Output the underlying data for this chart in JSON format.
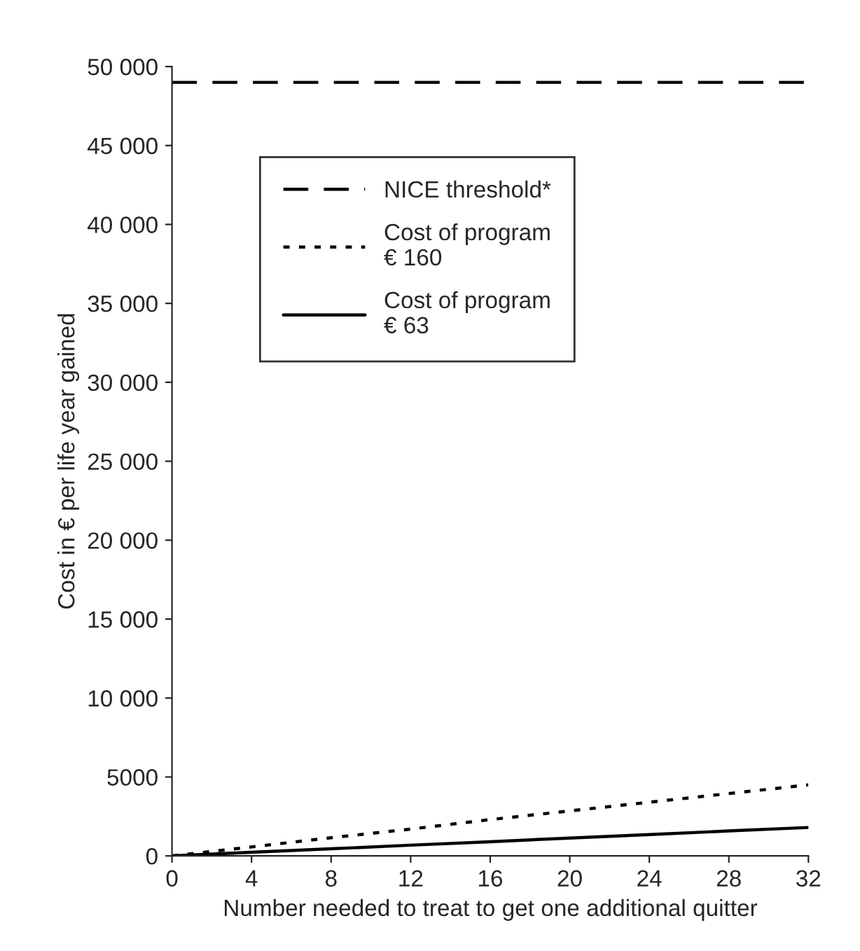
{
  "chart_data": {
    "type": "line",
    "xlabel": "Number needed to treat to get one additional quitter",
    "ylabel": "Cost in € per life year gained",
    "series": [
      {
        "name": "NICE threshold*",
        "color": "#000000",
        "line_style": "dashed",
        "x": [
          0,
          32
        ],
        "values": [
          49000,
          49000
        ]
      },
      {
        "name": "Cost of program\n€ 160",
        "color": "#000000",
        "line_style": "dotted",
        "x": [
          0,
          4,
          8,
          12,
          16,
          20,
          24,
          28,
          32
        ],
        "values": [
          0,
          570,
          1150,
          1700,
          2300,
          2850,
          3400,
          3950,
          4500
        ]
      },
      {
        "name": "Cost of program\n€ 63",
        "color": "#000000",
        "line_style": "solid",
        "x": [
          0,
          4,
          8,
          12,
          16,
          20,
          24,
          28,
          32
        ],
        "values": [
          0,
          230,
          450,
          680,
          900,
          1130,
          1350,
          1580,
          1800
        ]
      }
    ],
    "xlim": [
      0,
      32
    ],
    "xticks": [
      0,
      4,
      8,
      12,
      16,
      20,
      24,
      28,
      32
    ],
    "ylim": [
      0,
      50000
    ],
    "yticks": [
      0,
      5000,
      {
        "value": 10000,
        "label": "10 000"
      },
      {
        "value": 15000,
        "label": "15 000"
      },
      {
        "value": 20000,
        "label": "20 000"
      },
      {
        "value": 25000,
        "label": "25 000"
      },
      {
        "value": 30000,
        "label": "30 000"
      },
      {
        "value": 35000,
        "label": "35 000"
      },
      {
        "value": 40000,
        "label": "40 000"
      },
      {
        "value": 45000,
        "label": "45 000"
      },
      {
        "value": 50000,
        "label": "50 000"
      }
    ],
    "grid": false,
    "legend": "top left",
    "marker": "none"
  }
}
